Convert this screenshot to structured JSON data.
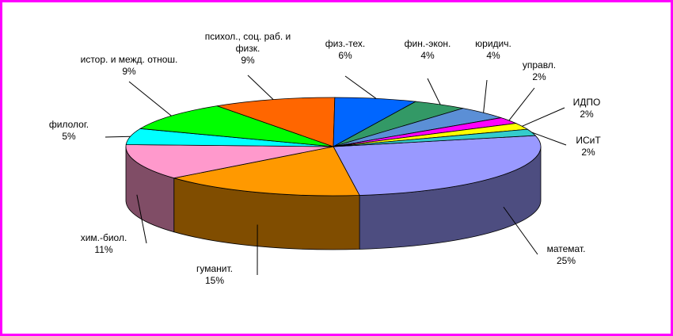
{
  "chart_data": {
    "type": "pie3d",
    "categories": [
      "математ.",
      "гуманит.",
      "хим.-биол.",
      "филолог.",
      "истор. и межд. отнош.",
      "психол., соц. раб. и физк.",
      "физ.-тех.",
      "фин.-экон.",
      "юридич.",
      "управл.",
      "ИДПО",
      "ИСиТ"
    ],
    "values": [
      25,
      15,
      11,
      5,
      9,
      9,
      6,
      4,
      4,
      2,
      2,
      2
    ],
    "value_labels": [
      "25%",
      "15%",
      "11%",
      "5%",
      "9%",
      "9%",
      "6%",
      "4%",
      "4%",
      "2%",
      "2%",
      "2%"
    ],
    "colors": [
      "#9999ff",
      "#ff9900",
      "#ff99cc",
      "#00ffff",
      "#00ff00",
      "#ff6600",
      "#0066ff",
      "#339966",
      "#5b8fd6",
      "#ff00ff",
      "#ffff00",
      "#33cccc"
    ]
  }
}
